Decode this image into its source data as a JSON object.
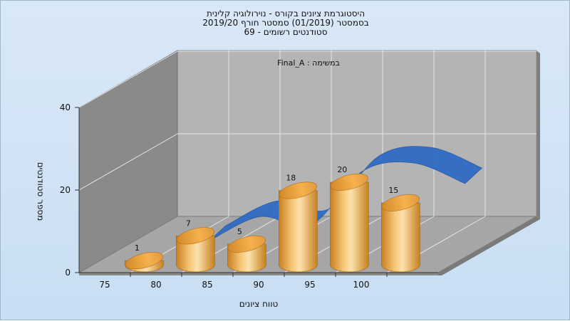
{
  "chart_data": {
    "type": "bar",
    "title_lines": [
      "היסטוגרמת ציונים בקורס - נוירולוגיה קלינית",
      "בסמסטר  (01/2019)  סמסטר חורף 2019/20",
      "סטודנטים רשומים - 69"
    ],
    "annotation": "Final_A : במשימה",
    "xlabel": "טווח ציונים",
    "ylabel": "מספר סטודנטים",
    "x_ticks": [
      "75",
      "80",
      "85",
      "90",
      "95",
      "100"
    ],
    "y_ticks": [
      "0",
      "20",
      "40"
    ],
    "ylim": [
      0,
      40
    ],
    "series": [
      {
        "type": "bar",
        "categories": [
          "77.5",
          "82.5",
          "87.5",
          "92.5",
          "97.5",
          "102.5"
        ],
        "values": [
          1,
          7,
          5,
          18,
          20,
          15
        ],
        "labels": [
          "1",
          "7",
          "5",
          "18",
          "20",
          "15"
        ],
        "color": "#e8a23a"
      },
      {
        "type": "ribbon",
        "x": [
          80,
          85,
          90,
          95,
          100,
          105
        ],
        "values": [
          1,
          7,
          5,
          18,
          20,
          15
        ],
        "color": "#2f6bc4"
      }
    ],
    "colors": {
      "back_wall": "#b4b4b4",
      "side_wall": "#8a8a8a",
      "floor": "#a6a6a6",
      "grid": "#e6e6e6"
    }
  }
}
